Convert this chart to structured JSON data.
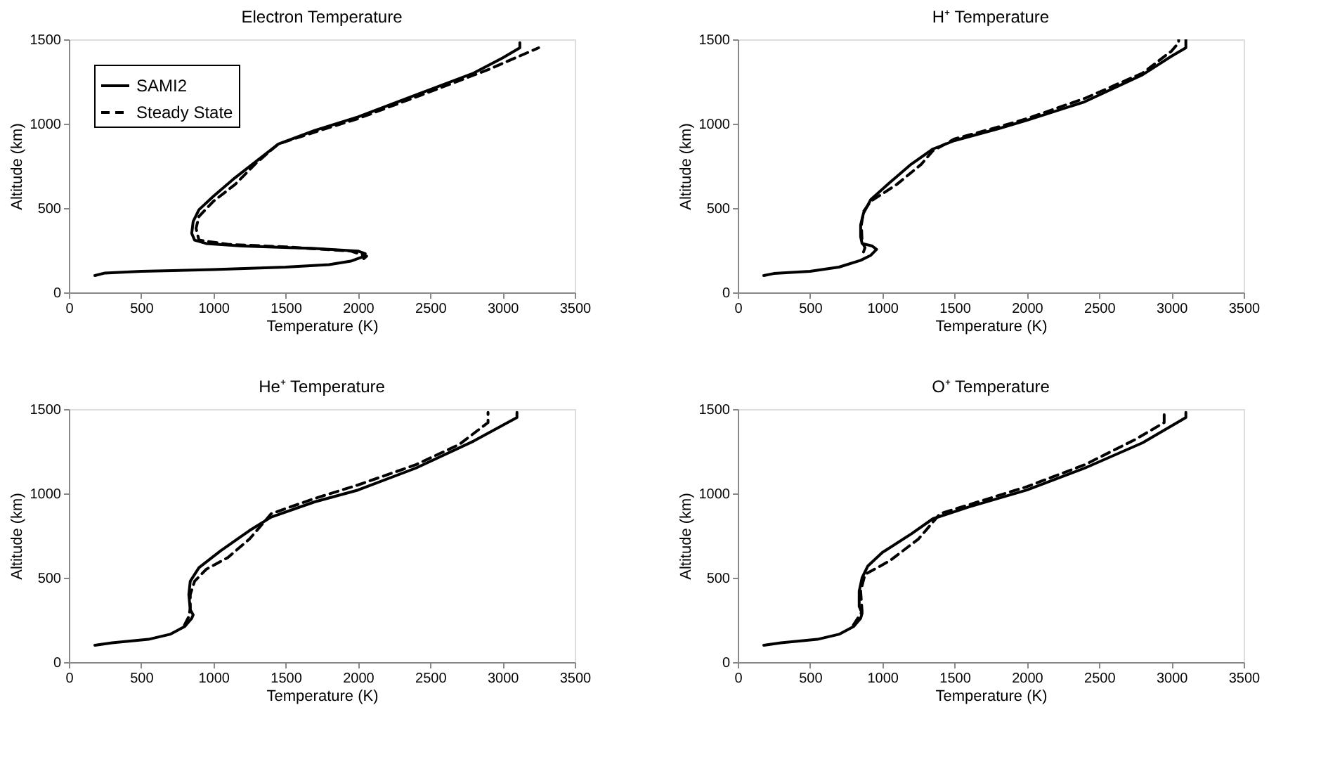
{
  "chart_data": [
    {
      "type": "line",
      "title": "Electron Temperature",
      "xlabel": "Temperature (K)",
      "ylabel": "Altitude (km)",
      "xlim": [
        0,
        3500
      ],
      "xticks": [
        0,
        500,
        1000,
        1500,
        2000,
        2500,
        3000,
        3500
      ],
      "ylim": [
        0,
        1500
      ],
      "yticks": [
        0,
        500,
        1000,
        1500
      ],
      "legend": "top left",
      "grid": false,
      "series": [
        {
          "name": "SAMI2",
          "color": "#000000",
          "line_style": "solid",
          "x": [
            180,
            250,
            500,
            1000,
            1500,
            1800,
            1950,
            2030,
            2050,
            2000,
            1700,
            1200,
            950,
            870,
            850,
            860,
            900,
            1000,
            1150,
            1300,
            1450,
            1700,
            2000,
            2400,
            2800,
            3000,
            3120,
            3120
          ],
          "values": [
            100,
            115,
            125,
            135,
            150,
            165,
            185,
            210,
            230,
            245,
            260,
            275,
            290,
            310,
            350,
            420,
            490,
            570,
            680,
            780,
            880,
            960,
            1040,
            1170,
            1300,
            1390,
            1450,
            1480
          ]
        },
        {
          "name": "Steady State",
          "color": "#000000",
          "line_style": "dashed",
          "x": [
            2040,
            2060,
            1950,
            1500,
            1100,
            900,
            880,
            900,
            1000,
            1150,
            1300,
            1450,
            1700,
            2000,
            2500,
            2900,
            3250
          ],
          "values": [
            200,
            215,
            245,
            270,
            285,
            310,
            380,
            450,
            540,
            640,
            770,
            880,
            950,
            1030,
            1190,
            1320,
            1450
          ]
        }
      ]
    },
    {
      "type": "line",
      "title": "H⁺ Temperature",
      "xlabel": "Temperature (K)",
      "ylabel": "Altitude (km)",
      "xlim": [
        0,
        3500
      ],
      "xticks": [
        0,
        500,
        1000,
        1500,
        2000,
        2500,
        3000,
        3500
      ],
      "ylim": [
        0,
        1500
      ],
      "yticks": [
        0,
        500,
        1000,
        1500
      ],
      "legend": "top left",
      "grid": false,
      "series": [
        {
          "name": "SAMI2",
          "color": "#000000",
          "line_style": "solid",
          "x": [
            180,
            250,
            500,
            700,
            850,
            920,
            960,
            930,
            860,
            850,
            850,
            870,
            920,
            1050,
            1200,
            1350,
            1500,
            1800,
            2000,
            2400,
            2800,
            3000,
            3100,
            3100
          ],
          "values": [
            100,
            112,
            125,
            150,
            190,
            220,
            255,
            275,
            290,
            330,
            400,
            470,
            550,
            650,
            760,
            850,
            900,
            970,
            1020,
            1130,
            1290,
            1400,
            1450,
            1500
          ]
        },
        {
          "name": "Steady State",
          "color": "#000000",
          "line_style": "dashed",
          "x": [
            870,
            880,
            860,
            855,
            870,
            920,
            1100,
            1270,
            1350,
            1500,
            1800,
            2000,
            2400,
            2800,
            3000,
            3050,
            3050
          ],
          "values": [
            240,
            265,
            300,
            400,
            480,
            540,
            640,
            760,
            840,
            910,
            980,
            1030,
            1150,
            1300,
            1430,
            1480,
            1500
          ]
        }
      ]
    },
    {
      "type": "line",
      "title": "He⁺ Temperature",
      "xlabel": "Temperature (K)",
      "ylabel": "Altitude (km)",
      "xlim": [
        0,
        3500
      ],
      "xticks": [
        0,
        500,
        1000,
        1500,
        2000,
        2500,
        3000,
        3500
      ],
      "ylim": [
        0,
        1500
      ],
      "yticks": [
        0,
        500,
        1000,
        1500
      ],
      "legend": "top left",
      "grid": false,
      "series": [
        {
          "name": "SAMI2",
          "color": "#000000",
          "line_style": "solid",
          "x": [
            180,
            300,
            550,
            700,
            800,
            850,
            860,
            840,
            830,
            840,
            900,
            1050,
            1250,
            1400,
            1700,
            2000,
            2400,
            2800,
            3100,
            3100
          ],
          "values": [
            100,
            115,
            135,
            165,
            210,
            260,
            280,
            310,
            400,
            480,
            560,
            660,
            780,
            860,
            950,
            1020,
            1150,
            1310,
            1450,
            1480
          ]
        },
        {
          "name": "Steady State",
          "color": "#000000",
          "line_style": "dashed",
          "x": [
            800,
            830,
            840,
            840,
            870,
            950,
            1100,
            1250,
            1400,
            1700,
            2000,
            2400,
            2700,
            2900,
            2900
          ],
          "values": [
            220,
            270,
            320,
            400,
            480,
            550,
            620,
            730,
            880,
            970,
            1050,
            1170,
            1290,
            1420,
            1480
          ]
        }
      ]
    },
    {
      "type": "line",
      "title": "O⁺ Temperature",
      "xlabel": "Temperature (K)",
      "ylabel": "Altitude (km)",
      "xlim": [
        0,
        3500
      ],
      "xticks": [
        0,
        500,
        1000,
        1500,
        2000,
        2500,
        3000,
        3500
      ],
      "ylim": [
        0,
        1500
      ],
      "yticks": [
        0,
        500,
        1000,
        1500
      ],
      "legend": "top left",
      "grid": false,
      "series": [
        {
          "name": "SAMI2",
          "color": "#000000",
          "line_style": "solid",
          "x": [
            180,
            300,
            550,
            700,
            800,
            850,
            860,
            840,
            840,
            860,
            900,
            1000,
            1200,
            1350,
            1600,
            2000,
            2400,
            2800,
            3100,
            3100
          ],
          "values": [
            100,
            115,
            135,
            165,
            210,
            260,
            290,
            330,
            420,
            500,
            570,
            650,
            760,
            850,
            920,
            1020,
            1150,
            1300,
            1450,
            1480
          ]
        },
        {
          "name": "Steady State",
          "color": "#000000",
          "line_style": "dashed",
          "x": [
            800,
            860,
            850,
            880,
            1050,
            1250,
            1400,
            1700,
            2000,
            2400,
            2750,
            2950,
            2950
          ],
          "values": [
            220,
            300,
            420,
            520,
            600,
            730,
            880,
            960,
            1040,
            1170,
            1320,
            1420,
            1480
          ]
        }
      ]
    }
  ]
}
